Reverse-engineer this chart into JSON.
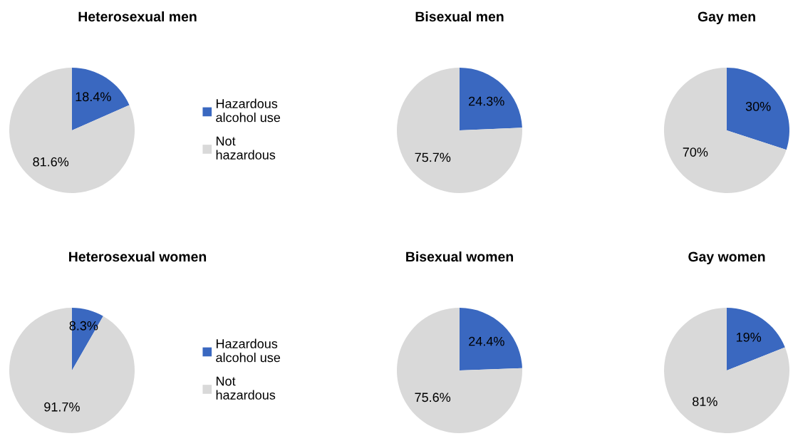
{
  "chart_data": [
    {
      "type": "pie",
      "title": "Heterosexual men",
      "categories": [
        "Hazardous alcohol use",
        "Not hazardous"
      ],
      "values": [
        18.4,
        81.6
      ],
      "value_labels": [
        "18.4%",
        "81.6%"
      ],
      "colors": [
        "#3a68c0",
        "#d9d9d9"
      ],
      "legend": "right"
    },
    {
      "type": "pie",
      "title": "Bisexual men",
      "values": [
        24.3,
        75.7
      ],
      "value_labels": [
        "24.3%",
        "75.7%"
      ],
      "colors": [
        "#3a68c0",
        "#d9d9d9"
      ]
    },
    {
      "type": "pie",
      "title": "Gay men",
      "values": [
        30,
        70
      ],
      "value_labels": [
        "30%",
        "70%"
      ],
      "colors": [
        "#3a68c0",
        "#d9d9d9"
      ]
    },
    {
      "type": "pie",
      "title": "Heterosexual women",
      "categories": [
        "Hazardous alcohol use",
        "Not hazardous"
      ],
      "values": [
        8.3,
        91.7
      ],
      "value_labels": [
        "8.3%",
        "91.7%"
      ],
      "colors": [
        "#3a68c0",
        "#d9d9d9"
      ],
      "legend": "right"
    },
    {
      "type": "pie",
      "title": "Bisexual women",
      "values": [
        24.4,
        75.6
      ],
      "value_labels": [
        "24.4%",
        "75.6%"
      ],
      "colors": [
        "#3a68c0",
        "#d9d9d9"
      ]
    },
    {
      "type": "pie",
      "title": "Gay women",
      "values": [
        19,
        81
      ],
      "value_labels": [
        "19%",
        "81%"
      ],
      "colors": [
        "#3a68c0",
        "#d9d9d9"
      ]
    }
  ]
}
